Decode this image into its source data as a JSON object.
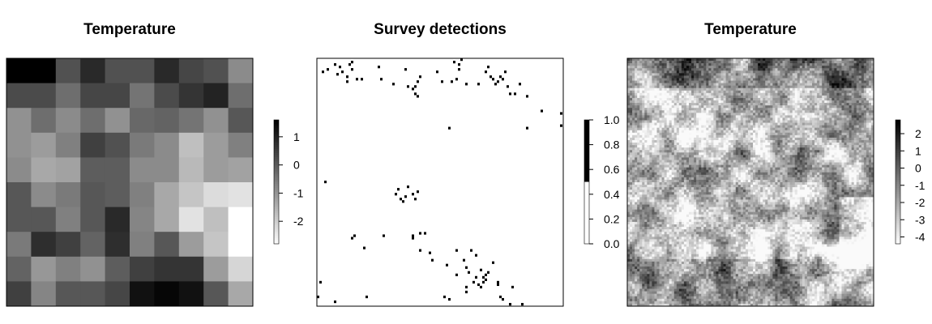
{
  "chart_data": [
    {
      "type": "heatmap",
      "title": "Temperature",
      "legend": {
        "position": "right",
        "ticks": [
          "1",
          "0",
          "-1",
          "-2"
        ],
        "tick_values": [
          1,
          0,
          -1,
          -2
        ],
        "range": [
          -2.8,
          1.6
        ]
      },
      "grid": {
        "rows": 10,
        "cols": 10,
        "values": [
          [
            1.6,
            1.6,
            0.2,
            0.9,
            0.2,
            0.2,
            0.9,
            0.4,
            0.2,
            -0.8
          ],
          [
            0.3,
            0.3,
            -0.3,
            0.4,
            0.4,
            -0.4,
            0.3,
            0.7,
            1.0,
            -0.3
          ],
          [
            -0.9,
            -0.3,
            -0.8,
            -0.3,
            -0.9,
            -0.2,
            -0.1,
            -0.4,
            -0.9,
            0.1
          ],
          [
            -0.9,
            -1.1,
            -0.6,
            0.5,
            0.2,
            -0.5,
            -0.8,
            -1.7,
            -1.1,
            -0.6
          ],
          [
            -0.8,
            -1.3,
            -1.2,
            0.0,
            0.0,
            -0.8,
            -0.8,
            -1.6,
            -1.1,
            -1.2
          ],
          [
            0.1,
            -0.8,
            -0.5,
            0.1,
            0.0,
            -0.6,
            -1.3,
            -1.8,
            -2.2,
            -2.3
          ],
          [
            0.1,
            0.1,
            -0.6,
            0.1,
            0.9,
            -0.7,
            -1.3,
            -2.3,
            -1.7,
            -2.8
          ],
          [
            -0.5,
            0.8,
            0.5,
            -0.1,
            0.8,
            -0.6,
            0.1,
            -1.1,
            -1.8,
            -2.8
          ],
          [
            -0.1,
            -1.0,
            -0.6,
            -0.9,
            0.0,
            0.5,
            0.7,
            0.7,
            -1.1,
            -2.1
          ],
          [
            0.5,
            -0.7,
            0.1,
            0.1,
            0.4,
            1.3,
            1.5,
            1.3,
            0.1,
            -1.3
          ]
        ]
      }
    },
    {
      "type": "scatter",
      "title": "Survey detections",
      "legend": {
        "position": "right",
        "ticks": [
          "1.0",
          "0.8",
          "0.6",
          "0.4",
          "0.2",
          "0.0"
        ],
        "tick_values": [
          1.0,
          0.8,
          0.6,
          0.4,
          0.2,
          0.0
        ],
        "range": [
          0,
          1
        ]
      },
      "xlim": [
        0,
        100
      ],
      "ylim": [
        0,
        100
      ],
      "points": [
        [
          2,
          95
        ],
        [
          4,
          96
        ],
        [
          7,
          98
        ],
        [
          9,
          97
        ],
        [
          8,
          94
        ],
        [
          10,
          95
        ],
        [
          12,
          93
        ],
        [
          13,
          98
        ],
        [
          14,
          99
        ],
        [
          14,
          96
        ],
        [
          12,
          91
        ],
        [
          16,
          92
        ],
        [
          18,
          92
        ],
        [
          25,
          97
        ],
        [
          26,
          92
        ],
        [
          31,
          90
        ],
        [
          36,
          96
        ],
        [
          37,
          89
        ],
        [
          39,
          88
        ],
        [
          40,
          89
        ],
        [
          41,
          91
        ],
        [
          42,
          93
        ],
        [
          40,
          86
        ],
        [
          41,
          85
        ],
        [
          49,
          95
        ],
        [
          51,
          91
        ],
        [
          55,
          91
        ],
        [
          57,
          92
        ],
        [
          56,
          99
        ],
        [
          58,
          98
        ],
        [
          59,
          100
        ],
        [
          58,
          96
        ],
        [
          61,
          90
        ],
        [
          66,
          90
        ],
        [
          69,
          95
        ],
        [
          70,
          97
        ],
        [
          71,
          93
        ],
        [
          72,
          92
        ],
        [
          73,
          90
        ],
        [
          74,
          91
        ],
        [
          75,
          93
        ],
        [
          76,
          92
        ],
        [
          77,
          95
        ],
        [
          78,
          89
        ],
        [
          79,
          86
        ],
        [
          81,
          86
        ],
        [
          86,
          85
        ],
        [
          83,
          90
        ],
        [
          92,
          79
        ],
        [
          100,
          78
        ],
        [
          100,
          73
        ],
        [
          54,
          72
        ],
        [
          86,
          72
        ],
        [
          3,
          50
        ],
        [
          32,
          45
        ],
        [
          33,
          47
        ],
        [
          34,
          43
        ],
        [
          36,
          44
        ],
        [
          39,
          45
        ],
        [
          40,
          43
        ],
        [
          41,
          46
        ],
        [
          35,
          42
        ],
        [
          37,
          48
        ],
        [
          14,
          27
        ],
        [
          15,
          28
        ],
        [
          19,
          23
        ],
        [
          27,
          28
        ],
        [
          39,
          28
        ],
        [
          39,
          27
        ],
        [
          42,
          29
        ],
        [
          44,
          29
        ],
        [
          46,
          21
        ],
        [
          42,
          22
        ],
        [
          47,
          18
        ],
        [
          53,
          16
        ],
        [
          57,
          22
        ],
        [
          60,
          18
        ],
        [
          61,
          15
        ],
        [
          63,
          22
        ],
        [
          65,
          20
        ],
        [
          72,
          17
        ],
        [
          67,
          14
        ],
        [
          62,
          13
        ],
        [
          57,
          12
        ],
        [
          61,
          7
        ],
        [
          64,
          9
        ],
        [
          66,
          8
        ],
        [
          68,
          9
        ],
        [
          69,
          10
        ],
        [
          69,
          12
        ],
        [
          70,
          13
        ],
        [
          68,
          11
        ],
        [
          65,
          11
        ],
        [
          67,
          7
        ],
        [
          74,
          8
        ],
        [
          74,
          9
        ],
        [
          80,
          7
        ],
        [
          75,
          3
        ],
        [
          76,
          2
        ],
        [
          79,
          0
        ],
        [
          84,
          0
        ],
        [
          52,
          3
        ],
        [
          54,
          2
        ],
        [
          61,
          5
        ],
        [
          1,
          9
        ],
        [
          0,
          3
        ],
        [
          7,
          1
        ],
        [
          20,
          3
        ]
      ]
    },
    {
      "type": "heatmap",
      "title": "Temperature",
      "legend": {
        "position": "right",
        "ticks": [
          "2",
          "1",
          "0",
          "-1",
          "-2",
          "-3",
          "-4"
        ],
        "tick_values": [
          2,
          1,
          0,
          -1,
          -2,
          -3,
          -4
        ],
        "range": [
          -4.4,
          2.8
        ]
      },
      "grid": {
        "rows": 100,
        "cols": 100,
        "note_hidden": "procedural"
      }
    }
  ]
}
